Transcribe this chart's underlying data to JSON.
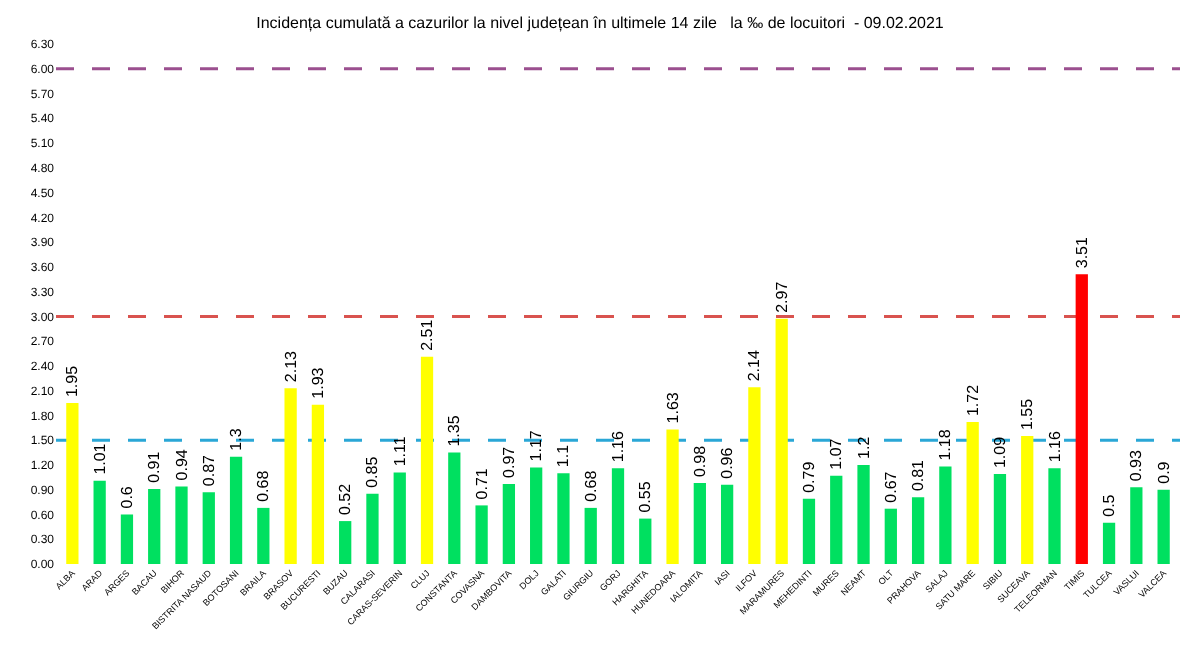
{
  "chart_data": {
    "type": "bar",
    "title": "Incidența cumulată a cazurilor la nivel județean în ultimele 14 zile   la ‰ de locuitori  - 09.02.2021",
    "categories": [
      "ALBA",
      "ARAD",
      "ARGES",
      "BACAU",
      "BIHOR",
      "BISTRITA NASAUD",
      "BOTOSANI",
      "BRAILA",
      "BRASOV",
      "BUCURESTI",
      "BUZAU",
      "CALARASI",
      "CARAS-SEVERIN",
      "CLUJ",
      "CONSTANTA",
      "COVASNA",
      "DAMBOVITA",
      "DOLJ",
      "GALATI",
      "GIURGIU",
      "GORJ",
      "HARGHITA",
      "HUNEDOARA",
      "IALOMITA",
      "IASI",
      "ILFOV",
      "MARAMURES",
      "MEHEDINTI",
      "MURES",
      "NEAMT",
      "OLT",
      "PRAHOVA",
      "SALAJ",
      "SATU MARE",
      "SIBIU",
      "SUCEAVA",
      "TELEORMAN",
      "TIMIS",
      "TULCEA",
      "VASLUI",
      "VALCEA"
    ],
    "values": [
      1.95,
      1.01,
      0.6,
      0.91,
      0.94,
      0.87,
      1.3,
      0.68,
      2.13,
      1.93,
      0.52,
      0.85,
      1.11,
      2.51,
      1.35,
      0.71,
      0.97,
      1.17,
      1.1,
      0.68,
      1.16,
      0.55,
      1.63,
      0.98,
      0.96,
      2.14,
      2.97,
      0.79,
      1.07,
      1.2,
      0.67,
      0.81,
      1.18,
      1.72,
      1.09,
      1.55,
      1.16,
      3.51,
      0.5,
      0.93,
      0.9
    ],
    "colors": [
      "#ffff00",
      "#00e060",
      "#00e060",
      "#00e060",
      "#00e060",
      "#00e060",
      "#00e060",
      "#00e060",
      "#ffff00",
      "#ffff00",
      "#00e060",
      "#00e060",
      "#00e060",
      "#ffff00",
      "#00e060",
      "#00e060",
      "#00e060",
      "#00e060",
      "#00e060",
      "#00e060",
      "#00e060",
      "#00e060",
      "#ffff00",
      "#00e060",
      "#00e060",
      "#ffff00",
      "#ffff00",
      "#00e060",
      "#00e060",
      "#00e060",
      "#00e060",
      "#00e060",
      "#00e060",
      "#ffff00",
      "#00e060",
      "#ffff00",
      "#00e060",
      "#ff0000",
      "#00e060",
      "#00e060",
      "#00e060"
    ],
    "data_labels": true,
    "ylim": [
      0,
      6.3
    ],
    "yticks": [
      {
        "value": 0,
        "label": "0.00"
      },
      {
        "value": 0.3,
        "label": "0.30"
      },
      {
        "value": 0.6,
        "label": "0.60"
      },
      {
        "value": 0.9,
        "label": "0.90"
      },
      {
        "value": 1.2,
        "label": "1.20"
      },
      {
        "value": 1.5,
        "label": "1.50"
      },
      {
        "value": 1.8,
        "label": "1.80"
      },
      {
        "value": 2.1,
        "label": "2.10"
      },
      {
        "value": 2.4,
        "label": "2.40"
      },
      {
        "value": 2.7,
        "label": "2.70"
      },
      {
        "value": 3.0,
        "label": "3.00"
      },
      {
        "value": 3.3,
        "label": "3.30"
      },
      {
        "value": 3.6,
        "label": "3.60"
      },
      {
        "value": 3.9,
        "label": "3.90"
      },
      {
        "value": 4.2,
        "label": "4.20"
      },
      {
        "value": 4.5,
        "label": "4.50"
      },
      {
        "value": 4.8,
        "label": "4.80"
      },
      {
        "value": 5.1,
        "label": "5.10"
      },
      {
        "value": 5.4,
        "label": "5.40"
      },
      {
        "value": 5.7,
        "label": "5.70"
      },
      {
        "value": 6.0,
        "label": "6.00"
      },
      {
        "value": 6.3,
        "label": "6.30"
      }
    ],
    "ref_lines": [
      {
        "axis": "y",
        "value": 1.5,
        "color": "#2aa7d6",
        "line_style": "dashed"
      },
      {
        "axis": "y",
        "value": 3.0,
        "color": "#d9534f",
        "line_style": "dashed"
      },
      {
        "axis": "y",
        "value": 6.0,
        "color": "#9b4f8f",
        "line_style": "dashed"
      }
    ],
    "grid": false
  }
}
